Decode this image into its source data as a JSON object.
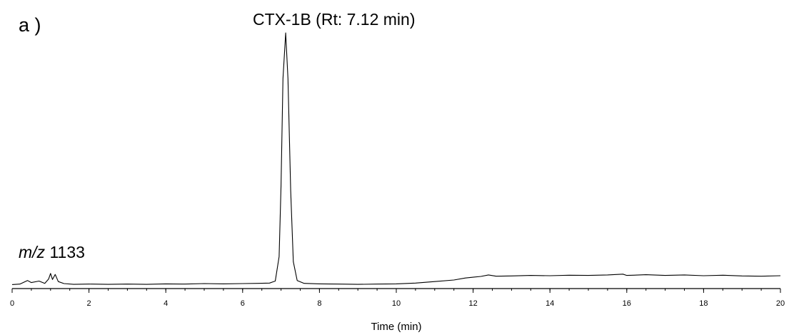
{
  "panel_label": "a )",
  "peak_annotation": "CTX-1B (Rt: 7.12 min)",
  "ion_label_prefix": "m/z",
  "ion_label_value": "1133",
  "chart_data": {
    "type": "line",
    "title": "",
    "xlabel": "Time (min)",
    "ylabel": "",
    "xlim": [
      0,
      20
    ],
    "ylim": [
      0,
      100
    ],
    "x_ticks": [
      0,
      2,
      4,
      6,
      8,
      10,
      12,
      14,
      16,
      18,
      20
    ],
    "x_minor_step": 0.5,
    "grid": false,
    "legend": "none",
    "line_color": "#000000",
    "peaks": [
      {
        "label": "CTX-1B",
        "x": 7.12,
        "y": 100
      }
    ],
    "series": [
      {
        "values": [
          [
            0.0,
            1.0
          ],
          [
            0.2,
            1.2
          ],
          [
            0.4,
            2.6
          ],
          [
            0.5,
            1.8
          ],
          [
            0.7,
            2.4
          ],
          [
            0.85,
            1.5
          ],
          [
            0.95,
            3.2
          ],
          [
            1.0,
            5.4
          ],
          [
            1.05,
            3.0
          ],
          [
            1.12,
            5.0
          ],
          [
            1.2,
            2.2
          ],
          [
            1.35,
            1.4
          ],
          [
            1.6,
            1.1
          ],
          [
            2.0,
            1.2
          ],
          [
            2.5,
            1.1
          ],
          [
            3.0,
            1.2
          ],
          [
            3.5,
            1.1
          ],
          [
            4.0,
            1.3
          ],
          [
            4.5,
            1.2
          ],
          [
            5.0,
            1.4
          ],
          [
            5.5,
            1.3
          ],
          [
            6.0,
            1.4
          ],
          [
            6.4,
            1.5
          ],
          [
            6.7,
            1.6
          ],
          [
            6.85,
            2.4
          ],
          [
            6.95,
            12.0
          ],
          [
            7.0,
            40.0
          ],
          [
            7.05,
            82.0
          ],
          [
            7.12,
            100.0
          ],
          [
            7.18,
            82.0
          ],
          [
            7.25,
            38.0
          ],
          [
            7.32,
            10.0
          ],
          [
            7.42,
            2.6
          ],
          [
            7.6,
            1.5
          ],
          [
            8.0,
            1.3
          ],
          [
            8.5,
            1.2
          ],
          [
            9.0,
            1.1
          ],
          [
            9.5,
            1.2
          ],
          [
            10.0,
            1.3
          ],
          [
            10.5,
            1.6
          ],
          [
            11.0,
            2.2
          ],
          [
            11.5,
            2.8
          ],
          [
            11.8,
            3.6
          ],
          [
            12.0,
            3.9
          ],
          [
            12.2,
            4.2
          ],
          [
            12.4,
            4.8
          ],
          [
            12.6,
            4.3
          ],
          [
            13.0,
            4.4
          ],
          [
            13.5,
            4.6
          ],
          [
            14.0,
            4.5
          ],
          [
            14.5,
            4.7
          ],
          [
            15.0,
            4.6
          ],
          [
            15.5,
            4.8
          ],
          [
            15.9,
            5.1
          ],
          [
            16.0,
            4.6
          ],
          [
            16.5,
            4.9
          ],
          [
            17.0,
            4.6
          ],
          [
            17.5,
            4.8
          ],
          [
            18.0,
            4.5
          ],
          [
            18.5,
            4.7
          ],
          [
            19.0,
            4.4
          ],
          [
            19.5,
            4.3
          ],
          [
            20.0,
            4.5
          ]
        ]
      }
    ]
  }
}
